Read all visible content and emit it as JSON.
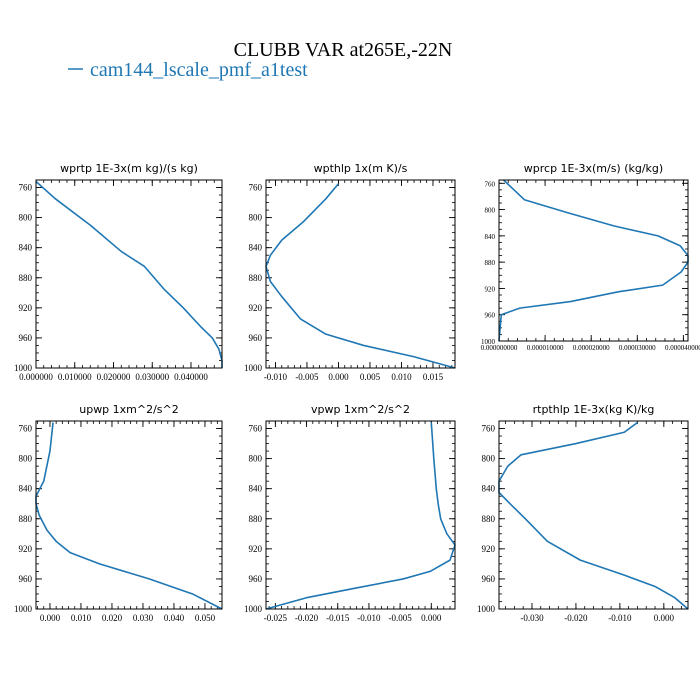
{
  "figure": {
    "title": "CLUBB VAR at265E,-22N",
    "legend_label": "cam144_lscale_pmf_a1test",
    "line_color": "#1f77b4"
  },
  "chart_data": [
    {
      "type": "line",
      "title": "wprtp 1E-3x(m kg)/(s kg)",
      "xlim": [
        0.0,
        0.048
      ],
      "ylim": [
        1000,
        750
      ],
      "xticks": [
        0.0,
        0.01,
        0.02,
        0.03,
        0.04
      ],
      "xtick_labels": [
        "0.000000",
        "0.010000",
        "0.020000",
        "0.030000",
        "0.040000"
      ],
      "yticks": [
        760,
        800,
        840,
        880,
        920,
        960,
        1000
      ],
      "series": [
        {
          "x": [
            0.0,
            0.005,
            0.014,
            0.022,
            0.028,
            0.033,
            0.038,
            0.0425,
            0.0455,
            0.0472,
            0.048,
            0.048
          ],
          "y": [
            752,
            775,
            810,
            845,
            865,
            895,
            920,
            945,
            960,
            975,
            990,
            1000
          ]
        }
      ]
    },
    {
      "type": "line",
      "title": "wpthlp 1x(m K)/s",
      "xlim": [
        -0.0115,
        0.0185
      ],
      "ylim": [
        1000,
        750
      ],
      "xticks": [
        -0.01,
        -0.005,
        0.0,
        0.005,
        0.01,
        0.015
      ],
      "xtick_labels": [
        "-0.010",
        "-0.005",
        "0.000",
        "0.005",
        "0.010",
        "0.015"
      ],
      "yticks": [
        760,
        800,
        840,
        880,
        920,
        960,
        1000
      ],
      "series": [
        {
          "x": [
            0.0,
            -0.002,
            -0.0055,
            -0.009,
            -0.0108,
            -0.0115,
            -0.0108,
            -0.009,
            -0.006,
            -0.002,
            0.004,
            0.012,
            0.0185
          ],
          "y": [
            755,
            775,
            805,
            830,
            850,
            865,
            885,
            905,
            935,
            955,
            970,
            985,
            1000
          ]
        }
      ]
    },
    {
      "type": "line",
      "title": "wprcp 1E-3x(m/s) (kg/kg)",
      "xlim": [
        0.0,
        4.1e-05
      ],
      "ylim": [
        1000,
        755
      ],
      "xticks": [
        0.0,
        1e-05,
        2e-05,
        3e-05,
        4e-05
      ],
      "xtick_labels": [
        "0.000000000",
        "0.000010000",
        "0.000020000",
        "0.000030000",
        "0.000040000"
      ],
      "yticks": [
        760,
        800,
        840,
        880,
        920,
        960,
        1000
      ],
      "series": [
        {
          "x": [
            1e-06,
            5.5e-06,
            1.5e-05,
            2.5e-05,
            3.45e-05,
            3.93e-05,
            4.1e-05,
            4.1e-05,
            3.95e-05,
            3.55e-05,
            2.6e-05,
            1.55e-05,
            4.5e-06,
            5e-07,
            0.0
          ],
          "y": [
            755,
            785,
            805,
            825,
            840,
            855,
            870,
            880,
            895,
            915,
            925,
            940,
            950,
            960,
            1000
          ]
        }
      ]
    },
    {
      "type": "line",
      "title": "upwp 1xm^2/s^2",
      "xlim": [
        -0.0045,
        0.0555
      ],
      "ylim": [
        1000,
        750
      ],
      "xticks": [
        0.0,
        0.01,
        0.02,
        0.03,
        0.04,
        0.05
      ],
      "xtick_labels": [
        "0.000",
        "0.010",
        "0.020",
        "0.030",
        "0.040",
        "0.050"
      ],
      "yticks": [
        760,
        800,
        840,
        880,
        920,
        960,
        1000
      ],
      "series": [
        {
          "x": [
            0.001,
            0.0,
            -0.002,
            -0.0045,
            -0.0045,
            -0.0035,
            -0.001,
            0.002,
            0.0065,
            0.016,
            0.032,
            0.046,
            0.0555
          ],
          "y": [
            752,
            790,
            830,
            850,
            860,
            875,
            895,
            910,
            925,
            940,
            960,
            980,
            1000
          ]
        }
      ]
    },
    {
      "type": "line",
      "title": "vpwp 1xm^2/s^2",
      "xlim": [
        -0.0265,
        0.0038
      ],
      "ylim": [
        1000,
        750
      ],
      "xticks": [
        -0.025,
        -0.02,
        -0.015,
        -0.01,
        -0.005,
        0.0
      ],
      "xtick_labels": [
        "-0.025",
        "-0.020",
        "-0.015",
        "-0.010",
        "-0.005",
        "0.000"
      ],
      "yticks": [
        760,
        800,
        840,
        880,
        920,
        960,
        1000
      ],
      "series": [
        {
          "x": [
            0.0,
            0.0004,
            0.0008,
            0.0011,
            0.0015,
            0.0025,
            0.0038,
            0.003,
            -0.0002,
            -0.0045,
            -0.012,
            -0.02,
            -0.0265
          ],
          "y": [
            752,
            800,
            840,
            860,
            880,
            900,
            915,
            935,
            950,
            960,
            972,
            985,
            1000
          ]
        }
      ]
    },
    {
      "type": "line",
      "title": "rtpthlp 1E-3x(kg K)/kg",
      "xlim": [
        -0.0375,
        0.0055
      ],
      "ylim": [
        1000,
        750
      ],
      "xticks": [
        -0.03,
        -0.02,
        -0.01,
        0.0
      ],
      "xtick_labels": [
        "-0.030",
        "-0.020",
        "-0.010",
        "0.000"
      ],
      "yticks": [
        760,
        800,
        840,
        880,
        920,
        960,
        1000
      ],
      "series": [
        {
          "x": [
            -0.006,
            -0.009,
            -0.02,
            -0.0325,
            -0.0355,
            -0.0375,
            -0.0375,
            -0.035,
            -0.0315,
            -0.0265,
            -0.019,
            -0.009,
            -0.002,
            0.0025,
            0.0055
          ],
          "y": [
            752,
            765,
            780,
            795,
            810,
            830,
            845,
            860,
            880,
            910,
            935,
            955,
            970,
            985,
            1000
          ]
        }
      ]
    }
  ]
}
